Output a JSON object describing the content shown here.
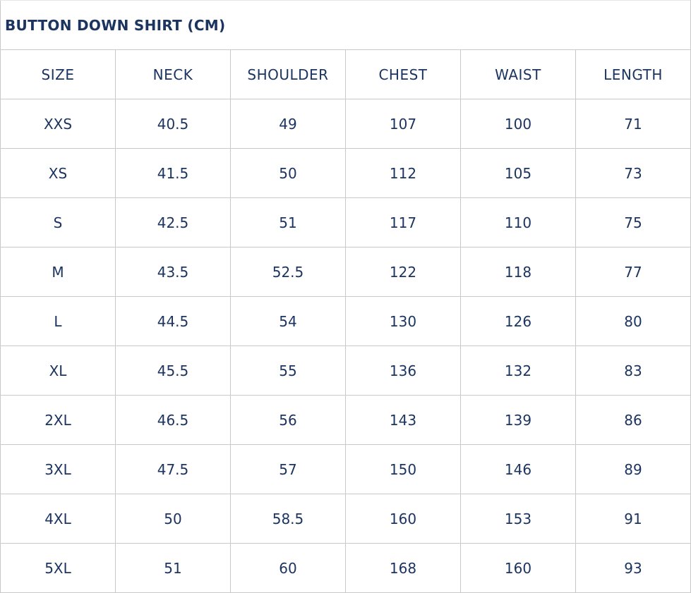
{
  "title": "BUTTON DOWN SHIRT (CM)",
  "colors": {
    "text": "#1b3460",
    "border": "#c9c9c9"
  },
  "headers": [
    "SIZE",
    "NECK",
    "SHOULDER",
    "CHEST",
    "WAIST",
    "LENGTH"
  ],
  "rows": [
    [
      "XXS",
      "40.5",
      "49",
      "107",
      "100",
      "71"
    ],
    [
      "XS",
      "41.5",
      "50",
      "112",
      "105",
      "73"
    ],
    [
      "S",
      "42.5",
      "51",
      "117",
      "110",
      "75"
    ],
    [
      "M",
      "43.5",
      "52.5",
      "122",
      "118",
      "77"
    ],
    [
      "L",
      "44.5",
      "54",
      "130",
      "126",
      "80"
    ],
    [
      "XL",
      "45.5",
      "55",
      "136",
      "132",
      "83"
    ],
    [
      "2XL",
      "46.5",
      "56",
      "143",
      "139",
      "86"
    ],
    [
      "3XL",
      "47.5",
      "57",
      "150",
      "146",
      "89"
    ],
    [
      "4XL",
      "50",
      "58.5",
      "160",
      "153",
      "91"
    ],
    [
      "5XL",
      "51",
      "60",
      "168",
      "160",
      "93"
    ]
  ]
}
